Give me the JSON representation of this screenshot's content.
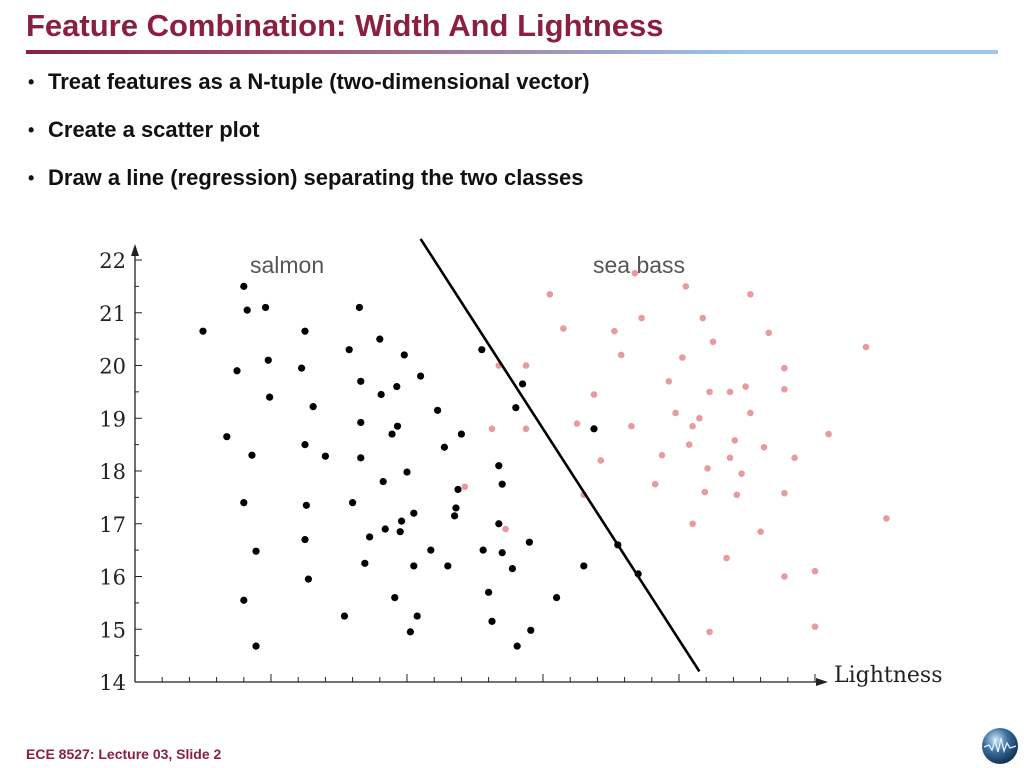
{
  "slide": {
    "title": "Feature Combination: Width And Lightness",
    "bullets": [
      "Treat features as a N-tuple (two-dimensional vector)",
      "Create a scatter plot",
      "Draw a line (regression) separating the two classes"
    ],
    "footer": "ECE 8527: Lecture 03, Slide 2",
    "colors": {
      "title": "#8b1f3f",
      "rule_start": "#8b1f3f",
      "rule_end": "#9cc7ee"
    },
    "logo_icon": "globe-icon"
  },
  "chart_data": {
    "type": "scatter",
    "xlabel": "Lightness",
    "ylabel": "",
    "ylim": [
      14,
      22
    ],
    "yticks": [
      14,
      15,
      16,
      17,
      18,
      19,
      20,
      21,
      22
    ],
    "ytick_labels": [
      "14",
      "15",
      "16",
      "17",
      "18",
      "19",
      "20",
      "21",
      "22"
    ],
    "grid": false,
    "series": [
      {
        "name": "salmon",
        "color": "#000000",
        "points": [
          [
            1.0,
            20.65
          ],
          [
            1.35,
            18.65
          ],
          [
            1.5,
            19.9
          ],
          [
            1.6,
            21.5
          ],
          [
            1.6,
            17.4
          ],
          [
            1.6,
            15.55
          ],
          [
            1.65,
            21.05
          ],
          [
            1.72,
            18.3
          ],
          [
            1.78,
            16.48
          ],
          [
            1.78,
            14.68
          ],
          [
            1.92,
            21.1
          ],
          [
            1.96,
            20.1
          ],
          [
            1.98,
            19.4
          ],
          [
            2.45,
            19.95
          ],
          [
            2.5,
            20.65
          ],
          [
            2.5,
            18.5
          ],
          [
            2.52,
            17.35
          ],
          [
            2.5,
            16.7
          ],
          [
            2.55,
            15.95
          ],
          [
            2.62,
            19.22
          ],
          [
            2.8,
            18.28
          ],
          [
            3.08,
            15.25
          ],
          [
            3.15,
            20.3
          ],
          [
            3.2,
            17.4
          ],
          [
            3.3,
            21.1
          ],
          [
            3.32,
            19.7
          ],
          [
            3.32,
            18.92
          ],
          [
            3.32,
            18.25
          ],
          [
            3.38,
            16.25
          ],
          [
            3.45,
            16.75
          ],
          [
            3.6,
            20.5
          ],
          [
            3.62,
            19.45
          ],
          [
            3.65,
            17.8
          ],
          [
            3.68,
            16.9
          ],
          [
            3.78,
            18.7
          ],
          [
            3.82,
            15.6
          ],
          [
            3.85,
            19.6
          ],
          [
            3.86,
            18.85
          ],
          [
            3.9,
            16.85
          ],
          [
            3.92,
            17.05
          ],
          [
            3.96,
            20.2
          ],
          [
            4.0,
            17.98
          ],
          [
            4.05,
            14.95
          ],
          [
            4.1,
            17.2
          ],
          [
            4.1,
            16.2
          ],
          [
            4.15,
            15.25
          ],
          [
            4.2,
            19.8
          ],
          [
            4.35,
            16.5
          ],
          [
            4.45,
            19.15
          ],
          [
            4.55,
            18.45
          ],
          [
            4.6,
            16.2
          ],
          [
            4.7,
            17.15
          ],
          [
            4.72,
            17.3
          ],
          [
            4.75,
            17.65
          ],
          [
            4.8,
            18.7
          ],
          [
            5.1,
            20.3
          ],
          [
            5.12,
            16.5
          ],
          [
            5.2,
            15.7
          ],
          [
            5.25,
            15.15
          ],
          [
            5.35,
            18.1
          ],
          [
            5.35,
            17.0
          ],
          [
            5.4,
            17.75
          ],
          [
            5.4,
            16.45
          ],
          [
            5.55,
            16.15
          ],
          [
            5.6,
            19.2
          ],
          [
            5.62,
            14.68
          ],
          [
            5.7,
            19.65
          ],
          [
            5.8,
            16.65
          ],
          [
            5.82,
            14.98
          ],
          [
            6.2,
            15.6
          ],
          [
            6.6,
            16.2
          ],
          [
            6.75,
            18.8
          ],
          [
            7.1,
            16.6
          ],
          [
            7.4,
            16.05
          ]
        ]
      },
      {
        "name": "sea bass",
        "color": "#e89aa0",
        "points": [
          [
            4.85,
            17.7
          ],
          [
            5.25,
            18.8
          ],
          [
            5.35,
            20.0
          ],
          [
            5.45,
            16.9
          ],
          [
            5.75,
            20.0
          ],
          [
            5.75,
            18.8
          ],
          [
            6.1,
            21.35
          ],
          [
            6.3,
            20.7
          ],
          [
            6.5,
            18.9
          ],
          [
            6.6,
            17.55
          ],
          [
            6.75,
            19.45
          ],
          [
            6.85,
            18.2
          ],
          [
            7.05,
            20.65
          ],
          [
            7.15,
            20.2
          ],
          [
            7.3,
            18.85
          ],
          [
            7.35,
            21.75
          ],
          [
            7.45,
            20.9
          ],
          [
            7.65,
            17.75
          ],
          [
            7.75,
            18.3
          ],
          [
            7.85,
            19.7
          ],
          [
            7.95,
            19.1
          ],
          [
            8.05,
            20.15
          ],
          [
            8.1,
            21.5
          ],
          [
            8.15,
            18.5
          ],
          [
            8.2,
            18.85
          ],
          [
            8.2,
            17.0
          ],
          [
            8.3,
            19.0
          ],
          [
            8.35,
            20.9
          ],
          [
            8.38,
            17.6
          ],
          [
            8.42,
            18.05
          ],
          [
            8.45,
            19.5
          ],
          [
            8.45,
            14.95
          ],
          [
            8.5,
            20.45
          ],
          [
            8.7,
            16.35
          ],
          [
            8.75,
            19.5
          ],
          [
            8.75,
            18.25
          ],
          [
            8.82,
            18.58
          ],
          [
            8.85,
            17.55
          ],
          [
            8.92,
            17.95
          ],
          [
            8.98,
            19.6
          ],
          [
            9.05,
            21.35
          ],
          [
            9.05,
            19.1
          ],
          [
            9.2,
            16.85
          ],
          [
            9.25,
            18.45
          ],
          [
            9.32,
            20.62
          ],
          [
            9.55,
            16.0
          ],
          [
            9.55,
            17.58
          ],
          [
            9.55,
            19.95
          ],
          [
            9.55,
            19.55
          ],
          [
            9.7,
            18.25
          ],
          [
            10.0,
            16.1
          ],
          [
            10.0,
            15.05
          ],
          [
            10.2,
            18.7
          ],
          [
            10.75,
            20.35
          ],
          [
            11.05,
            17.1
          ]
        ]
      }
    ],
    "decision_boundary": {
      "label": "regression line",
      "from": [
        4.2,
        22.4
      ],
      "to": [
        8.3,
        14.2
      ]
    },
    "annotations": [
      "salmon",
      "sea bass"
    ]
  }
}
